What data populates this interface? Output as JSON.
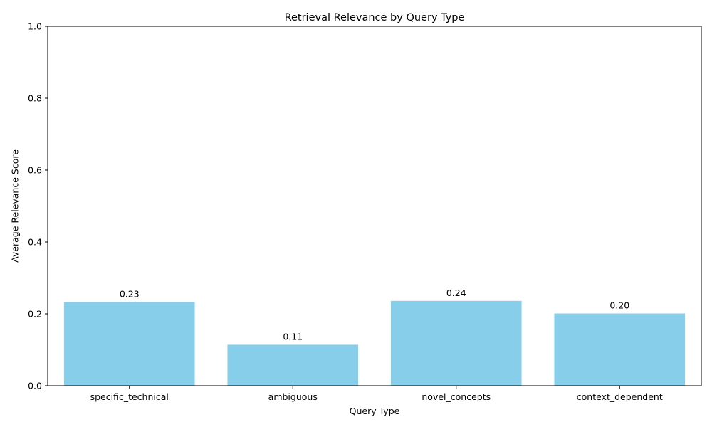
{
  "chart_data": {
    "type": "bar",
    "title": "Retrieval Relevance by Query Type",
    "xlabel": "Query Type",
    "ylabel": "Average Relevance Score",
    "categories": [
      "specific_technical",
      "ambiguous",
      "novel_concepts",
      "context_dependent"
    ],
    "values": [
      0.233,
      0.114,
      0.236,
      0.201
    ],
    "value_labels": [
      "0.23",
      "0.11",
      "0.24",
      "0.20"
    ],
    "ylim": [
      0,
      1.0
    ],
    "yticks": [
      0.0,
      0.2,
      0.4,
      0.6,
      0.8,
      1.0
    ],
    "ytick_labels": [
      "0.0",
      "0.2",
      "0.4",
      "0.6",
      "0.8",
      "1.0"
    ],
    "bar_color": "#87CEEB",
    "grid": false,
    "legend": "none"
  }
}
